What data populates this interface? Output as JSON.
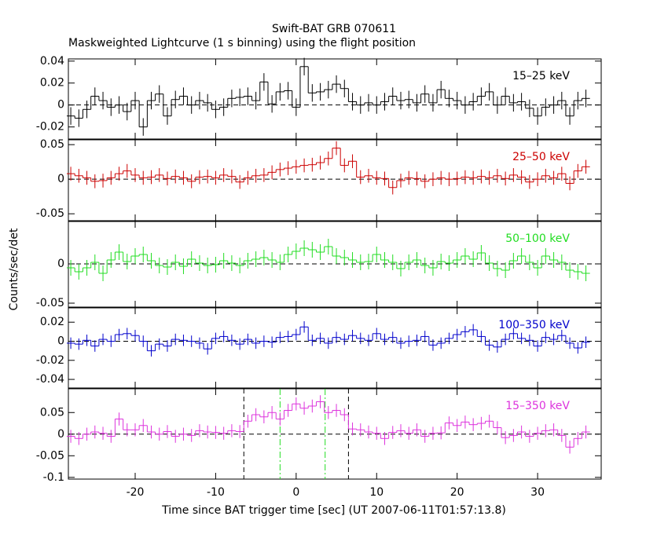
{
  "chart_data": [
    {
      "type": "step",
      "title": "Swift-BAT GRB 070611",
      "subtitle": "Maskweighted Lightcurve (1 s binning) using the flight position",
      "x": [
        -28,
        -27,
        -26,
        -25,
        -24,
        -23,
        -22,
        -21,
        -20,
        -19,
        -18,
        -17,
        -16,
        -15,
        -14,
        -13,
        -12,
        -11,
        -10,
        -9,
        -8,
        -7,
        -6,
        -5,
        -4,
        -3,
        -2,
        -1,
        0,
        1,
        2,
        3,
        4,
        5,
        6,
        7,
        8,
        9,
        10,
        11,
        12,
        13,
        14,
        15,
        16,
        17,
        18,
        19,
        20,
        21,
        22,
        23,
        24,
        25,
        26,
        27,
        28,
        29,
        30,
        31,
        32,
        33,
        34,
        35,
        36
      ],
      "xlim": [
        -28.3,
        37.9
      ],
      "ylim": [
        -0.031,
        0.042
      ],
      "yticks": [
        -0.02,
        0,
        0.02,
        0.04
      ],
      "series": [
        {
          "name": "15–25 keV",
          "color": "#000000",
          "error": 0.008,
          "values": [
            -0.01,
            -0.012,
            -0.004,
            0.008,
            0.004,
            -0.002,
            0,
            -0.006,
            0.004,
            -0.02,
            0.004,
            0.01,
            -0.01,
            0.005,
            0.008,
            0,
            0.004,
            0.002,
            -0.004,
            -0.002,
            0.006,
            0.007,
            0.008,
            0.004,
            0.021,
            0.001,
            0.012,
            0.013,
            -0.002,
            0.035,
            0.011,
            0.012,
            0.014,
            0.019,
            0.015,
            0.003,
            0,
            0.002,
            0,
            0.003,
            0.008,
            0.004,
            0.005,
            0.002,
            0.01,
            0.002,
            0.014,
            0.006,
            0.004,
            0,
            0.003,
            0.008,
            0.012,
            0,
            0.008,
            0.002,
            0.003,
            -0.003,
            -0.01,
            -0.002,
            0,
            0.004,
            -0.01,
            0.004,
            0.006
          ]
        }
      ],
      "legend": "upper right"
    },
    {
      "type": "step",
      "x": [
        -28,
        -27,
        -26,
        -25,
        -24,
        -23,
        -22,
        -21,
        -20,
        -19,
        -18,
        -17,
        -16,
        -15,
        -14,
        -13,
        -12,
        -11,
        -10,
        -9,
        -8,
        -7,
        -6,
        -5,
        -4,
        -3,
        -2,
        -1,
        0,
        1,
        2,
        3,
        4,
        5,
        6,
        7,
        8,
        9,
        10,
        11,
        12,
        13,
        14,
        15,
        16,
        17,
        18,
        19,
        20,
        21,
        22,
        23,
        24,
        25,
        26,
        27,
        28,
        29,
        30,
        31,
        32,
        33,
        34,
        35,
        36
      ],
      "xlim": [
        -28.3,
        37.9
      ],
      "ylim": [
        -0.06,
        0.057
      ],
      "yticks": [
        -0.05,
        0,
        0.05
      ],
      "series": [
        {
          "name": "25–50 keV",
          "color": "#cc0000",
          "error": 0.01,
          "values": [
            0.008,
            0.005,
            0.002,
            -0.003,
            -0.002,
            0.002,
            0.008,
            0.012,
            0.006,
            0.002,
            0.003,
            0.006,
            0.001,
            0.004,
            0.002,
            -0.003,
            0.003,
            0.004,
            0.002,
            0.006,
            0.004,
            -0.004,
            0.002,
            0.005,
            0.006,
            0.01,
            0.014,
            0.016,
            0.018,
            0.02,
            0.021,
            0.024,
            0.03,
            0.045,
            0.02,
            0.026,
            0.003,
            0.005,
            0.002,
            0.001,
            -0.012,
            -0.002,
            0.002,
            0.001,
            -0.003,
            0,
            0.002,
            0,
            0.001,
            0.003,
            0.002,
            0.004,
            0.002,
            0.005,
            0.001,
            0.006,
            0.003,
            -0.004,
            0,
            0.005,
            0.002,
            0.008,
            -0.006,
            0.012,
            0.018
          ]
        }
      ],
      "legend": "upper right"
    },
    {
      "type": "step",
      "y_label": "Counts/sec/det",
      "x": [
        -28,
        -27,
        -26,
        -25,
        -24,
        -23,
        -22,
        -21,
        -20,
        -19,
        -18,
        -17,
        -16,
        -15,
        -14,
        -13,
        -12,
        -11,
        -10,
        -9,
        -8,
        -7,
        -6,
        -5,
        -4,
        -3,
        -2,
        -1,
        0,
        1,
        2,
        3,
        4,
        5,
        6,
        7,
        8,
        9,
        10,
        11,
        12,
        13,
        14,
        15,
        16,
        17,
        18,
        19,
        20,
        21,
        22,
        23,
        24,
        25,
        26,
        27,
        28,
        29,
        30,
        31,
        32,
        33,
        34,
        35,
        36
      ],
      "xlim": [
        -28.3,
        37.9
      ],
      "ylim": [
        -0.055,
        0.054
      ],
      "yticks": [
        -0.05,
        0
      ],
      "series": [
        {
          "name": "50–100 keV",
          "color": "#22dd22",
          "error": 0.01,
          "values": [
            -0.005,
            -0.01,
            -0.005,
            0.002,
            -0.012,
            0.005,
            0.015,
            0.003,
            0.01,
            0.012,
            0.004,
            -0.002,
            -0.004,
            0.002,
            -0.003,
            0.006,
            0.001,
            -0.002,
            -0.001,
            0.004,
            0.001,
            -0.002,
            0.004,
            0.006,
            0.008,
            0.005,
            0.002,
            0.012,
            0.016,
            0.02,
            0.018,
            0.015,
            0.022,
            0.01,
            0.008,
            0.005,
            0.002,
            0.003,
            0.012,
            0.005,
            0.002,
            -0.006,
            0.002,
            0.005,
            -0.002,
            -0.005,
            0.003,
            0.001,
            0.005,
            0.01,
            0.006,
            0.014,
            0.001,
            -0.006,
            -0.008,
            0.004,
            0.01,
            0.002,
            -0.005,
            0.01,
            0.005,
            0.002,
            -0.008,
            -0.01,
            -0.012
          ]
        }
      ],
      "legend": "upper right"
    },
    {
      "type": "step",
      "x": [
        -28,
        -27,
        -26,
        -25,
        -24,
        -23,
        -22,
        -21,
        -20,
        -19,
        -18,
        -17,
        -16,
        -15,
        -14,
        -13,
        -12,
        -11,
        -10,
        -9,
        -8,
        -7,
        -6,
        -5,
        -4,
        -3,
        -2,
        -1,
        0,
        1,
        2,
        3,
        4,
        5,
        6,
        7,
        8,
        9,
        10,
        11,
        12,
        13,
        14,
        15,
        16,
        17,
        18,
        19,
        20,
        21,
        22,
        23,
        24,
        25,
        26,
        27,
        28,
        29,
        30,
        31,
        32,
        33,
        34,
        35,
        36
      ],
      "xlim": [
        -28.3,
        37.9
      ],
      "ylim": [
        -0.049,
        0.035
      ],
      "yticks": [
        -0.04,
        -0.02,
        0,
        0.02
      ],
      "series": [
        {
          "name": "100–350 keV",
          "color": "#0000cc",
          "error": 0.006,
          "values": [
            -0.002,
            -0.003,
            0.001,
            -0.005,
            0.002,
            0,
            0.007,
            0.008,
            0.006,
            0,
            -0.01,
            -0.003,
            -0.005,
            0.002,
            0.001,
            0,
            -0.002,
            -0.008,
            0.003,
            0.005,
            0.001,
            -0.003,
            0.002,
            -0.002,
            0,
            -0.001,
            0.004,
            0.005,
            0.007,
            0.015,
            0.001,
            0.003,
            -0.002,
            0.004,
            0.002,
            0.006,
            0.003,
            0.001,
            0.008,
            0.002,
            0.004,
            -0.002,
            0,
            0.001,
            0.005,
            -0.004,
            -0.002,
            0.003,
            0.007,
            0.01,
            0.012,
            0.005,
            -0.004,
            -0.006,
            0.002,
            0.008,
            0.003,
            0.001,
            -0.005,
            0.004,
            0.002,
            0.006,
            -0.002,
            -0.007,
            -0.001
          ]
        }
      ],
      "legend": "upper right"
    },
    {
      "type": "step",
      "x_label": "Time since BAT trigger time [sec] (UT 2007-06-11T01:57:13.8)",
      "x": [
        -28,
        -27,
        -26,
        -25,
        -24,
        -23,
        -22,
        -21,
        -20,
        -19,
        -18,
        -17,
        -16,
        -15,
        -14,
        -13,
        -12,
        -11,
        -10,
        -9,
        -8,
        -7,
        -6,
        -5,
        -4,
        -3,
        -2,
        -1,
        0,
        1,
        2,
        3,
        4,
        5,
        6,
        7,
        8,
        9,
        10,
        11,
        12,
        13,
        14,
        15,
        16,
        17,
        18,
        19,
        20,
        21,
        22,
        23,
        24,
        25,
        26,
        27,
        28,
        29,
        30,
        31,
        32,
        33,
        34,
        35,
        36
      ],
      "xlim": [
        -28.3,
        37.9
      ],
      "xticks": [
        -20,
        -10,
        0,
        10,
        20,
        30
      ],
      "ylim": [
        -0.104,
        0.105
      ],
      "yticks": [
        -0.1,
        -0.05,
        0,
        0.05
      ],
      "series": [
        {
          "name": "15–350 keV",
          "color": "#dd33dd",
          "error": 0.015,
          "values": [
            -0.005,
            -0.01,
            0,
            0.005,
            0.002,
            -0.005,
            0.035,
            0.01,
            0.01,
            0.02,
            0.005,
            0,
            0.006,
            -0.005,
            0,
            -0.003,
            0.008,
            0.005,
            0.004,
            0.002,
            0.008,
            0.006,
            0.03,
            0.045,
            0.04,
            0.05,
            0.035,
            0.055,
            0.07,
            0.06,
            0.065,
            0.075,
            0.05,
            0.055,
            0.045,
            0.012,
            0.01,
            0.005,
            0.002,
            -0.01,
            0.004,
            0.008,
            0.002,
            0.01,
            -0.005,
            0.002,
            0.003,
            0.026,
            0.02,
            0.028,
            0.022,
            0.025,
            0.03,
            0.015,
            -0.008,
            -0.003,
            0.005,
            -0.005,
            0.002,
            0.008,
            0.01,
            -0.003,
            -0.03,
            -0.01,
            0.005
          ]
        }
      ],
      "vlines": [
        {
          "x": -6.5,
          "color": "#000000",
          "dash": "dashed"
        },
        {
          "x": 6.5,
          "color": "#000000",
          "dash": "dashed"
        },
        {
          "x": -2,
          "color": "#22dd22",
          "dash": "dashdot"
        },
        {
          "x": 3.6,
          "color": "#22dd22",
          "dash": "dashdot"
        }
      ],
      "legend": "upper right"
    }
  ]
}
